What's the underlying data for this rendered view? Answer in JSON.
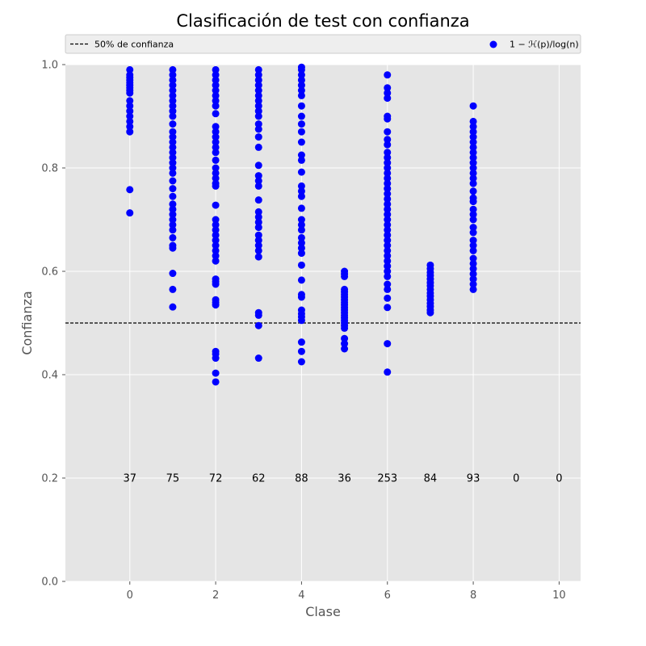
{
  "chart_data": {
    "type": "scatter",
    "title": "Clasificación de test con confianza",
    "xlabel": "Clase",
    "ylabel": "Confianza",
    "xlim": [
      -1.5,
      10.5
    ],
    "ylim": [
      0.0,
      1.0
    ],
    "xticks": [
      0,
      2,
      4,
      6,
      8,
      10
    ],
    "xtick_labels": [
      "0",
      "2",
      "4",
      "6",
      "8",
      "10"
    ],
    "yticks": [
      0.0,
      0.2,
      0.4,
      0.6,
      0.8,
      1.0
    ],
    "ytick_labels": [
      "0.0",
      "0.2",
      "0.4",
      "0.6",
      "0.8",
      "1.0"
    ],
    "grid": true,
    "background": "#e5e5e5",
    "point_color": "#0000ff",
    "legend": {
      "placement": "top, spanning full width",
      "entries": [
        {
          "label": "50% de confianza",
          "style": "dashed-line",
          "color": "#000000"
        },
        {
          "label": "1 − ℋ(p)/log(n)",
          "style": "marker",
          "color": "#0000ff"
        }
      ]
    },
    "threshold": {
      "y": 0.5,
      "style": "dashed",
      "color": "#000000",
      "label": "50% de confianza"
    },
    "counts": {
      "y": 0.2,
      "x": [
        0,
        1,
        2,
        3,
        4,
        5,
        6,
        7,
        8,
        9,
        10
      ],
      "labels": [
        "37",
        "75",
        "72",
        "62",
        "88",
        "36",
        "253",
        "84",
        "93",
        "0",
        "0"
      ]
    },
    "series": [
      {
        "name": "1 − ℋ(p)/log(n)",
        "points_by_class": [
          {
            "x": 0,
            "y": [
              0.99,
              0.98,
              0.975,
              0.97,
              0.965,
              0.96,
              0.955,
              0.95,
              0.945,
              0.93,
              0.92,
              0.91,
              0.9,
              0.89,
              0.88,
              0.87,
              0.758,
              0.713
            ]
          },
          {
            "x": 1,
            "y": [
              0.99,
              0.98,
              0.97,
              0.96,
              0.95,
              0.94,
              0.93,
              0.92,
              0.91,
              0.9,
              0.885,
              0.87,
              0.86,
              0.85,
              0.84,
              0.83,
              0.82,
              0.81,
              0.8,
              0.79,
              0.775,
              0.76,
              0.745,
              0.73,
              0.72,
              0.71,
              0.7,
              0.69,
              0.68,
              0.665,
              0.65,
              0.645,
              0.596,
              0.565,
              0.531
            ]
          },
          {
            "x": 2,
            "y": [
              0.99,
              0.98,
              0.97,
              0.96,
              0.95,
              0.94,
              0.93,
              0.92,
              0.905,
              0.88,
              0.87,
              0.86,
              0.85,
              0.84,
              0.83,
              0.815,
              0.8,
              0.79,
              0.78,
              0.77,
              0.765,
              0.728,
              0.7,
              0.69,
              0.68,
              0.67,
              0.66,
              0.65,
              0.64,
              0.63,
              0.62,
              0.585,
              0.58,
              0.575,
              0.545,
              0.54,
              0.535,
              0.445,
              0.44,
              0.432,
              0.403,
              0.386
            ]
          },
          {
            "x": 3,
            "y": [
              0.99,
              0.98,
              0.97,
              0.96,
              0.95,
              0.94,
              0.93,
              0.92,
              0.91,
              0.9,
              0.885,
              0.875,
              0.86,
              0.84,
              0.805,
              0.785,
              0.775,
              0.765,
              0.738,
              0.715,
              0.705,
              0.695,
              0.685,
              0.67,
              0.66,
              0.65,
              0.64,
              0.628,
              0.52,
              0.515,
              0.495,
              0.432
            ]
          },
          {
            "x": 4,
            "y": [
              0.995,
              0.99,
              0.98,
              0.97,
              0.96,
              0.95,
              0.94,
              0.92,
              0.9,
              0.885,
              0.87,
              0.85,
              0.825,
              0.815,
              0.792,
              0.765,
              0.755,
              0.745,
              0.722,
              0.7,
              0.69,
              0.68,
              0.665,
              0.655,
              0.645,
              0.635,
              0.612,
              0.583,
              0.555,
              0.55,
              0.525,
              0.518,
              0.512,
              0.505,
              0.463,
              0.445,
              0.425
            ]
          },
          {
            "x": 5,
            "y": [
              0.6,
              0.595,
              0.59,
              0.565,
              0.56,
              0.555,
              0.55,
              0.545,
              0.54,
              0.535,
              0.53,
              0.525,
              0.52,
              0.515,
              0.51,
              0.505,
              0.5,
              0.495,
              0.49,
              0.47,
              0.46,
              0.45
            ]
          },
          {
            "x": 6,
            "y": [
              0.98,
              0.955,
              0.945,
              0.935,
              0.9,
              0.895,
              0.87,
              0.855,
              0.845,
              0.83,
              0.82,
              0.81,
              0.8,
              0.79,
              0.78,
              0.77,
              0.76,
              0.75,
              0.74,
              0.73,
              0.72,
              0.71,
              0.7,
              0.69,
              0.68,
              0.67,
              0.66,
              0.65,
              0.64,
              0.63,
              0.62,
              0.61,
              0.6,
              0.59,
              0.575,
              0.565,
              0.548,
              0.53,
              0.46,
              0.405
            ]
          },
          {
            "x": 7,
            "y": [
              0.612,
              0.605,
              0.598,
              0.592,
              0.585,
              0.578,
              0.572,
              0.565,
              0.558,
              0.552,
              0.545,
              0.538,
              0.532,
              0.525,
              0.52
            ]
          },
          {
            "x": 8,
            "y": [
              0.92,
              0.89,
              0.88,
              0.87,
              0.86,
              0.85,
              0.84,
              0.83,
              0.82,
              0.81,
              0.8,
              0.79,
              0.78,
              0.77,
              0.755,
              0.742,
              0.735,
              0.72,
              0.71,
              0.7,
              0.685,
              0.675,
              0.66,
              0.65,
              0.64,
              0.625,
              0.615,
              0.605,
              0.595,
              0.585,
              0.575,
              0.565
            ]
          }
        ]
      }
    ]
  }
}
